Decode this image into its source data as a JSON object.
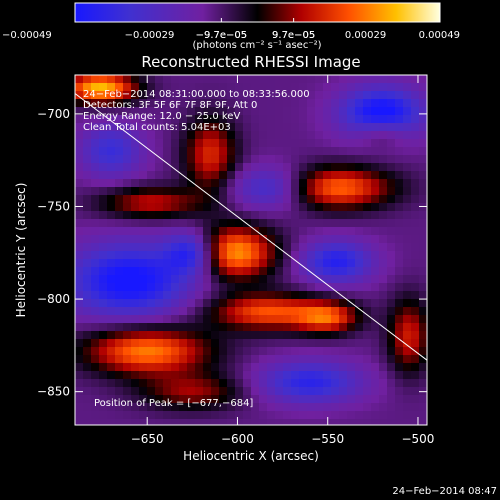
{
  "chart_data": {
    "type": "heatmap",
    "title": "Reconstructed RHESSI Image",
    "xlabel": "Heliocentric X (arcsec)",
    "ylabel": "Heliocentric Y (arcsec)",
    "xlim": [
      -690,
      -495
    ],
    "ylim": [
      -868,
      -679
    ],
    "xticks": [
      -650,
      -600,
      -550,
      -500
    ],
    "yticks": [
      -700,
      -750,
      -800,
      -850
    ],
    "xtick_labels": [
      "−650",
      "−600",
      "−550",
      "−500"
    ],
    "ytick_labels": [
      "−700",
      "−750",
      "−800",
      "−850"
    ],
    "colorbar": {
      "label": "(photons cm⁻² s⁻¹ asec⁻²)",
      "range": [
        -0.00049,
        0.00049
      ],
      "top_tick_labels": [
        "−9.7e−05",
        "9.7e−05"
      ],
      "top_tick_values": [
        -9.7e-05,
        9.7e-05
      ],
      "bottom_tick_labels": [
        "−0.00049",
        "−0.00029",
        "−9.7e−05",
        "9.7e−05",
        "0.00029",
        "0.00049"
      ],
      "bottom_tick_values": [
        -0.00049,
        -0.00029,
        -9.7e-05,
        9.7e-05,
        0.00029,
        0.00049
      ]
    },
    "info_lines": [
      "24−Feb−2014 08:31:00.000 to 08:33:56.000",
      "Detectors: 3F 5F 6F 7F 8F 9F, Att 0",
      "Energy Range: 12.0 − 25.0 keV",
      "Clean    Total counts: 5.04E+03"
    ],
    "peak_label": "Position of Peak = [−677,−684]",
    "limb_line": [
      [
        -690,
        -689
      ],
      [
        -495,
        -833
      ]
    ],
    "sources": [
      {
        "x": -676,
        "y": -686,
        "sx": 14,
        "sy": 6,
        "amp": 0.00049
      },
      {
        "x": -602,
        "y": -775,
        "sx": 16,
        "sy": 10,
        "amp": 0.00046
      },
      {
        "x": -584,
        "y": -807,
        "sx": 22,
        "sy": 7,
        "amp": 0.00036
      },
      {
        "x": -546,
        "y": -740,
        "sx": 22,
        "sy": 8,
        "amp": 0.0004
      },
      {
        "x": -550,
        "y": -810,
        "sx": 12,
        "sy": 6,
        "amp": 0.00032
      },
      {
        "x": -650,
        "y": -828,
        "sx": 24,
        "sy": 9,
        "amp": 0.00042
      },
      {
        "x": -648,
        "y": -748,
        "sx": 20,
        "sy": 6,
        "amp": 0.00026
      },
      {
        "x": -615,
        "y": -722,
        "sx": 10,
        "sy": 14,
        "amp": 0.0003
      },
      {
        "x": -625,
        "y": -850,
        "sx": 20,
        "sy": 7,
        "amp": 0.00022
      },
      {
        "x": -505,
        "y": -820,
        "sx": 8,
        "sy": 14,
        "amp": 0.00028
      },
      {
        "x": -520,
        "y": -710,
        "sx": 10,
        "sy": 6,
        "amp": 0.00018
      },
      {
        "x": -625,
        "y": -775,
        "sx": 10,
        "sy": 8,
        "amp": -0.00035
      },
      {
        "x": -660,
        "y": -790,
        "sx": 24,
        "sy": 14,
        "amp": -0.0004
      },
      {
        "x": -520,
        "y": -700,
        "sx": 16,
        "sy": 10,
        "amp": -0.00042
      },
      {
        "x": -545,
        "y": -780,
        "sx": 14,
        "sy": 8,
        "amp": -0.00032
      },
      {
        "x": -580,
        "y": -740,
        "sx": 16,
        "sy": 8,
        "amp": -0.00028
      },
      {
        "x": -560,
        "y": -845,
        "sx": 20,
        "sy": 8,
        "amp": -0.0003
      },
      {
        "x": -670,
        "y": -720,
        "sx": 12,
        "sy": 10,
        "amp": -0.00025
      }
    ]
  },
  "footer": {
    "timestamp": "24−Feb−2014 08:47"
  }
}
